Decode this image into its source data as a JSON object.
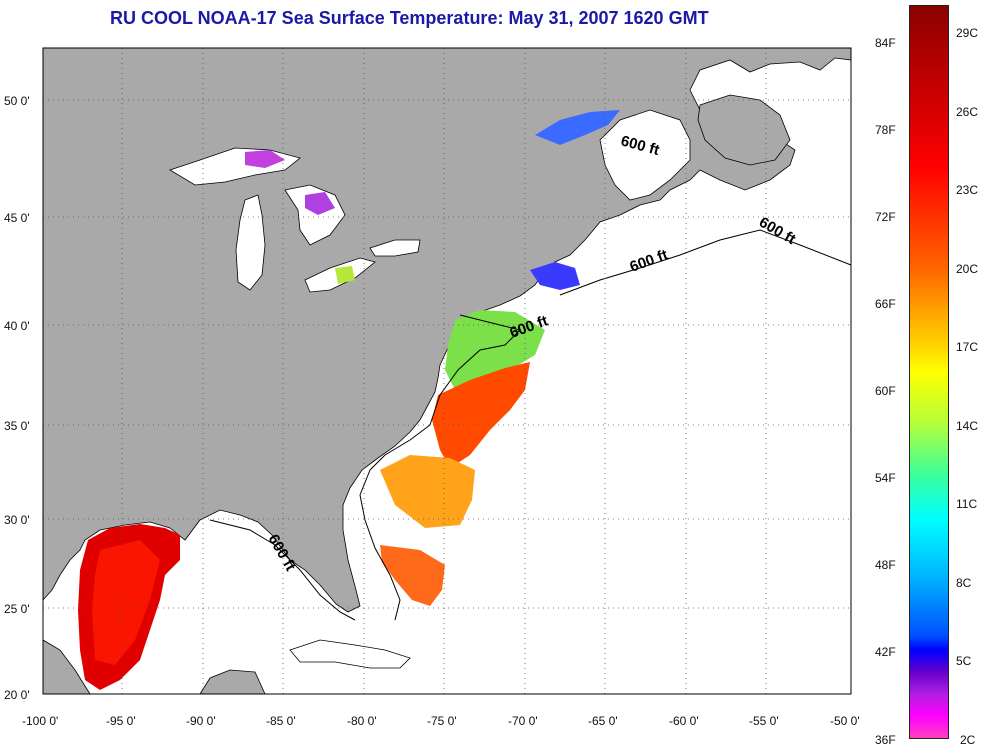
{
  "title": "RU COOL  NOAA-17  Sea Surface Temperature:  May 31, 2007 1620 GMT",
  "map": {
    "lon_labels": [
      "-100 0'",
      "-95 0'",
      "-90 0'",
      "-85 0'",
      "-80 0'",
      "-75 0'",
      "-70 0'",
      "-65 0'",
      "-60 0'",
      "-55 0'",
      "-50 0'"
    ],
    "lat_labels": [
      "50 0'",
      "45 0'",
      "40 0'",
      "35 0'",
      "30 0'",
      "25 0'",
      "20 0'"
    ],
    "isobath_labels": [
      "600 ft",
      "600 ft",
      "600 ft",
      "600 ft",
      "600 ft"
    ],
    "colors": {
      "land": "#a9a9a9",
      "ocean": "#ffffff",
      "grid": "#555555",
      "coast": "#000000"
    }
  },
  "colorbar": {
    "fahrenheit": [
      "84F",
      "78F",
      "72F",
      "66F",
      "60F",
      "54F",
      "48F",
      "42F",
      "36F"
    ],
    "celsius": [
      "29C",
      "26C",
      "23C",
      "20C",
      "17C",
      "14C",
      "11C",
      "8C",
      "5C",
      "2C"
    ]
  }
}
